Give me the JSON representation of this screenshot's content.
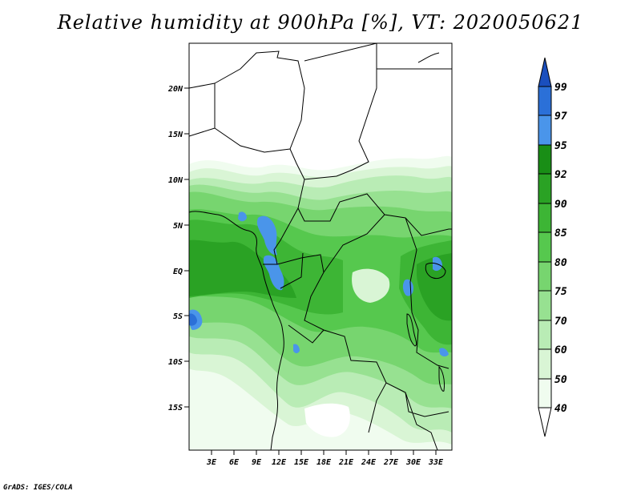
{
  "title": "Relative humidity at 900hPa [%], VT: 2020050621",
  "credit": "GrADS: IGES/COLA",
  "map": {
    "lat_ticks": [
      "20N",
      "15N",
      "10N",
      "5N",
      "EQ",
      "5S",
      "10S",
      "15S"
    ],
    "lon_ticks": [
      "3E",
      "6E",
      "9E",
      "12E",
      "15E",
      "18E",
      "21E",
      "24E",
      "27E",
      "30E",
      "33E"
    ]
  },
  "colorbar": {
    "levels": [
      "40",
      "50",
      "60",
      "70",
      "75",
      "80",
      "85",
      "90",
      "92",
      "95",
      "97",
      "99"
    ],
    "colors": {
      "c40": "#f0fcef",
      "c50": "#d9f5d5",
      "c60": "#b9ecb5",
      "c70": "#97e191",
      "c75": "#77d56f",
      "c80": "#56c84e",
      "c85": "#3db535",
      "c90": "#2aa224",
      "c92": "#198e16",
      "c95": "#4a95ea",
      "c97": "#2b70d8",
      "c99": "#1a4fbe"
    }
  }
}
